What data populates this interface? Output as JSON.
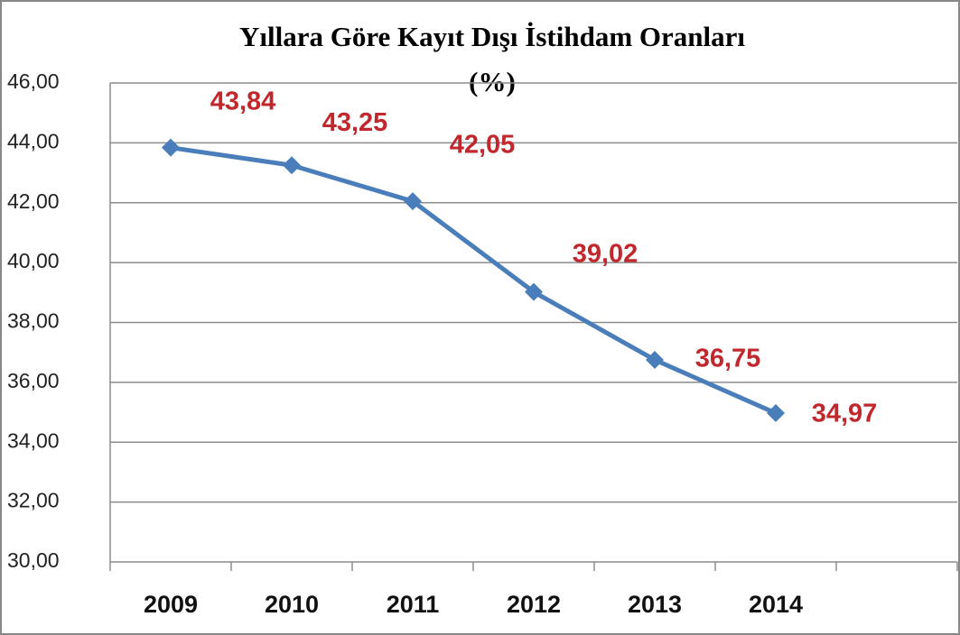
{
  "chart_data": {
    "type": "line",
    "title": "Yıllara  Göre Kayıt  Dışı İstihdam  Oranları",
    "subtitle": "(%)",
    "categories": [
      "2009",
      "2010",
      "2011",
      "2012",
      "2013",
      "2014",
      null
    ],
    "series": [
      {
        "name": null,
        "color": "#4a7ebb",
        "values": [
          43.84,
          43.25,
          42.05,
          39.02,
          36.75,
          34.97,
          null
        ],
        "value_labels": [
          "43,84",
          "43,25",
          "42,05",
          "39,02",
          "36,75",
          "34,97",
          null
        ],
        "label_color": "#c0282d"
      }
    ],
    "ylim": [
      30,
      46
    ],
    "yticks": [
      {
        "value": 30,
        "label": "30,00"
      },
      {
        "value": 32,
        "label": "32,00"
      },
      {
        "value": 34,
        "label": "34,00"
      },
      {
        "value": 36,
        "label": "36,00"
      },
      {
        "value": 38,
        "label": "38,00"
      },
      {
        "value": 40,
        "label": "40,00"
      },
      {
        "value": 42,
        "label": "42,00"
      },
      {
        "value": 44,
        "label": "44,00"
      },
      {
        "value": 46,
        "label": "46,00"
      }
    ],
    "grid": true
  }
}
